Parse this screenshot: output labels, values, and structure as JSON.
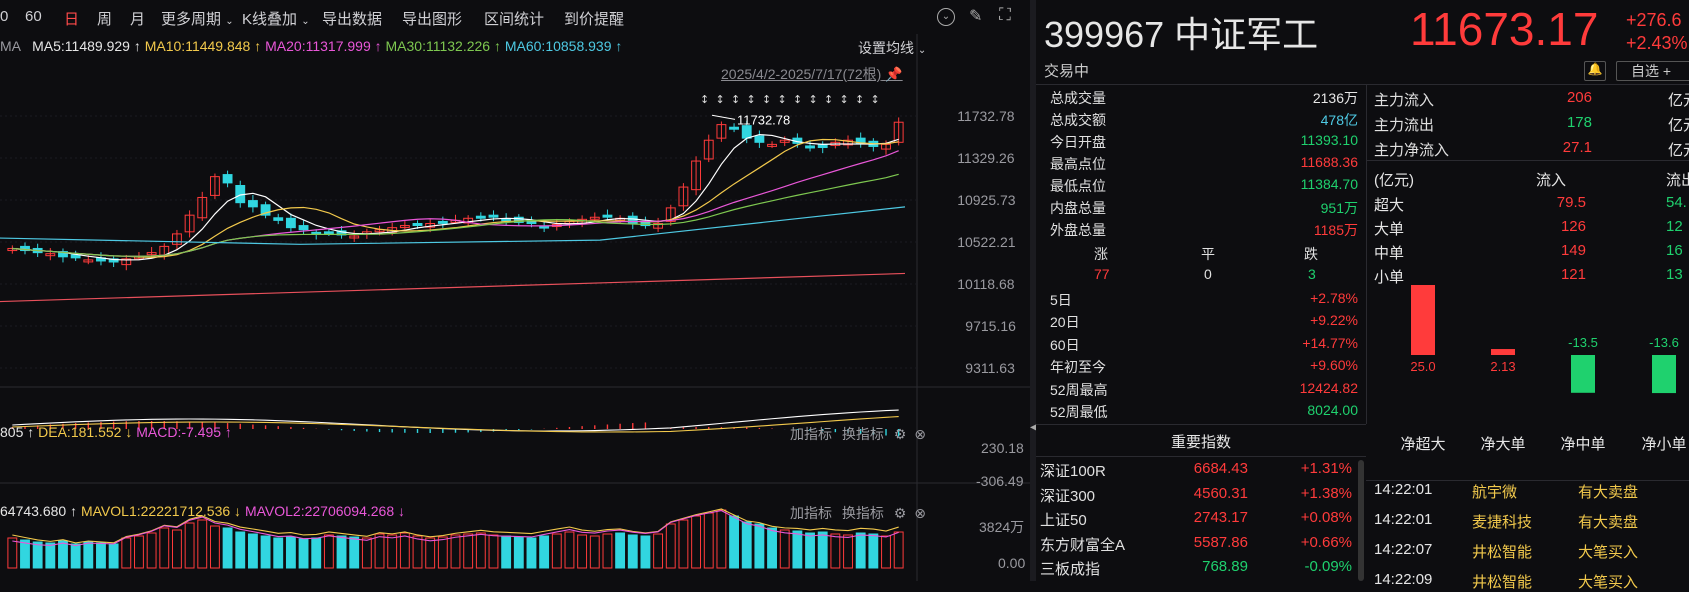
{
  "toolbar": {
    "items": [
      "0",
      "60",
      "日",
      "周",
      "月",
      "更多周期",
      "K线叠加",
      "导出数据",
      "导出图形",
      "区间统计",
      "到价提醒"
    ]
  },
  "ma_legend": {
    "prefix": "MA",
    "ma5": "MA5:11489.929",
    "ma10": "MA10:11449.848",
    "ma20": "MA20:11317.999",
    "ma30": "MA30:11132.226",
    "ma60": "MA60:10858.939",
    "settings": "设置均线"
  },
  "range_label": "2025/4/2-2025/7/17(72根)",
  "price_axis": [
    "11732.78",
    "11329.26",
    "10925.73",
    "10522.21",
    "10118.68",
    "9715.16",
    "9311.63"
  ],
  "peak_label": "11732.78",
  "macd_legend": {
    "dif": "805",
    "dea": "DEA:181.552",
    "macd": "MACD:-7.495",
    "add": "加指标",
    "swap": "换指标",
    "axis_top": "230.18",
    "axis_bottom": "-306.49"
  },
  "vol_legend": {
    "vol": "64743.680",
    "mavol1": "MAVOL1:22221712.536",
    "mavol2": "MAVOL2:22706094.268",
    "add": "加指标",
    "swap": "换指标",
    "axis_top": "3824万",
    "axis_bottom": "0.00"
  },
  "header": {
    "code_name": "399967 中证军工",
    "price": "11673.17",
    "change": "+276.6",
    "change_pct": "+2.43%",
    "status": "交易中",
    "watch_btn": "自选 +"
  },
  "stats": [
    {
      "label": "总成交量",
      "value": "2136万",
      "color": "white"
    },
    {
      "label": "总成交额",
      "value": "478亿",
      "color": "cyan"
    },
    {
      "label": "今日开盘",
      "value": "11393.10",
      "color": "green"
    },
    {
      "label": "最高点位",
      "value": "11688.36",
      "color": "red"
    },
    {
      "label": "最低点位",
      "value": "11384.70",
      "color": "green"
    },
    {
      "label": "内盘总量",
      "value": "951万",
      "color": "green"
    },
    {
      "label": "外盘总量",
      "value": "1185万",
      "color": "red"
    }
  ],
  "breadth": {
    "up_label": "涨",
    "flat_label": "平",
    "down_label": "跌",
    "up": "77",
    "flat": "0",
    "down": "3"
  },
  "periods": [
    {
      "label": "5日",
      "value": "+2.78%",
      "color": "red"
    },
    {
      "label": "20日",
      "value": "+9.22%",
      "color": "red"
    },
    {
      "label": "60日",
      "value": "+14.77%",
      "color": "red"
    },
    {
      "label": "年初至今",
      "value": "+9.60%",
      "color": "red"
    },
    {
      "label": "52周最高",
      "value": "12424.82",
      "color": "red"
    },
    {
      "label": "52周最低",
      "value": "8024.00",
      "color": "green"
    }
  ],
  "indices_title": "重要指数",
  "indices": [
    {
      "name": "深证100R",
      "value": "6684.43",
      "pct": "+1.31%",
      "color": "red"
    },
    {
      "name": "深证300",
      "value": "4560.31",
      "pct": "+1.38%",
      "color": "red"
    },
    {
      "name": "上证50",
      "value": "2743.17",
      "pct": "+0.08%",
      "color": "red"
    },
    {
      "name": "东方财富全A",
      "value": "5587.86",
      "pct": "+0.66%",
      "color": "red"
    },
    {
      "name": "三板成指",
      "value": "768.89",
      "pct": "-0.09%",
      "color": "green"
    }
  ],
  "flows": [
    {
      "label": "主力流入",
      "value": "206",
      "unit": "亿元",
      "color": "red"
    },
    {
      "label": "主力流出",
      "value": "178",
      "unit": "亿元",
      "color": "green"
    },
    {
      "label": "主力净流入",
      "value": "27.1",
      "unit": "亿元",
      "color": "red"
    }
  ],
  "flow_table": {
    "unit": "(亿元)",
    "in_label": "流入",
    "out_label": "流出",
    "rows": [
      {
        "label": "超大",
        "in": "79.5",
        "out": "54."
      },
      {
        "label": "大单",
        "in": "126",
        "out": "12"
      },
      {
        "label": "中单",
        "in": "149",
        "out": "16"
      },
      {
        "label": "小单",
        "in": "121",
        "out": "13"
      }
    ]
  },
  "net_bars": {
    "values": [
      25.0,
      2.13,
      -13.5,
      -13.6
    ],
    "labels": [
      "25.0",
      "2.13",
      "-13.5",
      "-13.6"
    ],
    "categories": [
      "净超大",
      "净大单",
      "净中单",
      "净小单"
    ]
  },
  "ticks": [
    {
      "time": "14:22:01",
      "name": "航宇微",
      "action": "有大卖盘"
    },
    {
      "time": "14:22:01",
      "name": "麦捷科技",
      "action": "有大卖盘"
    },
    {
      "time": "14:22:07",
      "name": "井松智能",
      "action": "大笔买入"
    },
    {
      "time": "14:22:09",
      "name": "井松智能",
      "action": "大笔买入"
    }
  ],
  "colors": {
    "up": "#ff3b3b",
    "down": "#31d6e0",
    "ma5": "#ffffff",
    "ma10": "#f2c94c",
    "ma20": "#e957d8",
    "ma30": "#7ec850",
    "ma60": "#4ec9e3"
  }
}
